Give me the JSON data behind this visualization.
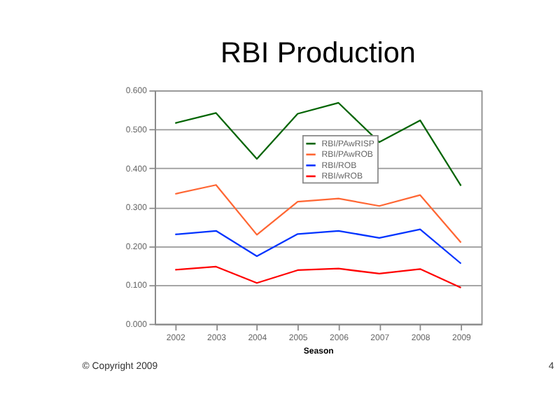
{
  "chart_data": {
    "type": "line",
    "title": "RBI Production",
    "xlabel": "Season",
    "categories": [
      "2002",
      "2003",
      "2004",
      "2005",
      "2006",
      "2007",
      "2008",
      "2009"
    ],
    "series": [
      {
        "name": "RBI/PAwRISP",
        "color": "#006400",
        "values": [
          0.516,
          0.542,
          0.424,
          0.54,
          0.568,
          0.467,
          0.523,
          0.355
        ]
      },
      {
        "name": "RBI/PAwROB",
        "color": "#ff6633",
        "values": [
          0.334,
          0.357,
          0.229,
          0.314,
          0.322,
          0.303,
          0.331,
          0.209
        ]
      },
      {
        "name": "RBI/ROB",
        "color": "#0033ff",
        "values": [
          0.23,
          0.239,
          0.174,
          0.231,
          0.239,
          0.221,
          0.243,
          0.155
        ]
      },
      {
        "name": "RBI/wROB",
        "color": "#ff0000",
        "values": [
          0.139,
          0.147,
          0.105,
          0.138,
          0.142,
          0.129,
          0.141,
          0.093
        ]
      }
    ],
    "ylim": [
      0,
      0.6
    ],
    "yticks": [
      {
        "value": 0,
        "label": "0.000"
      },
      {
        "value": 0.1,
        "label": "0.100"
      },
      {
        "value": 0.2,
        "label": "0.200"
      },
      {
        "value": 0.3,
        "label": "0.300"
      },
      {
        "value": 0.4,
        "label": "0.400"
      },
      {
        "value": 0.5,
        "label": "0.500"
      },
      {
        "value": 0.6,
        "label": "0.600"
      }
    ],
    "grid": "y",
    "legend": "top right",
    "marker": "none",
    "line_style": "solid",
    "annotations": [
      "© Copyright 2009",
      "4"
    ]
  }
}
